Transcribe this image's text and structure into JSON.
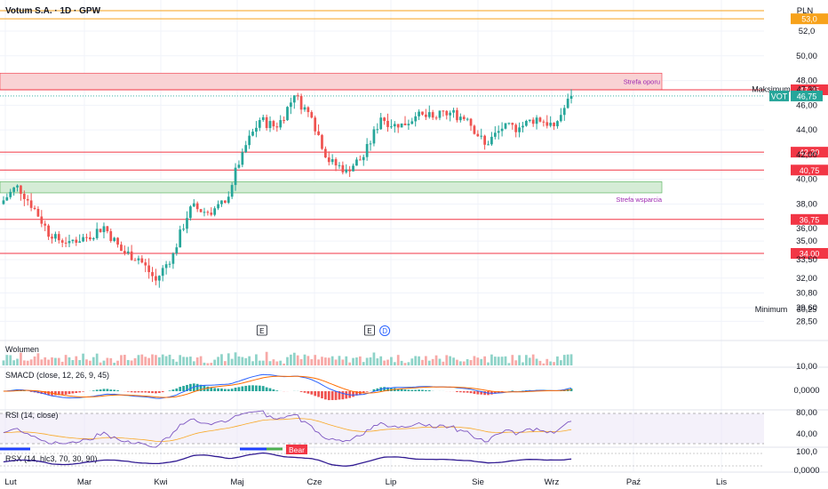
{
  "header": {
    "title": "Votum S.A. · 1D · GPW",
    "currency": "PLN"
  },
  "colors": {
    "up": "#26a69a",
    "down": "#ef5350",
    "level_line": "#f23645",
    "orange_line": "#f7a21b",
    "resistance_fill": "#f9d2d4",
    "support_fill": "#d5ecd6",
    "grid": "#f0f3fa",
    "axis_text": "#131722",
    "label_purple": "#9c27b0",
    "macd_line": "#2962ff",
    "signal_line": "#ff6d00",
    "rsi_line": "#7e57c2",
    "rsx_line": "#311b92"
  },
  "price_axis": {
    "ticks": [
      "52,0",
      "50,00",
      "48,00",
      "46,00",
      "44,00",
      "42,00",
      "40,00",
      "38,00",
      "36,00",
      "35,00",
      "33,50",
      "32,00",
      "30,80",
      "29,60",
      "28,50"
    ],
    "tick_values": [
      52,
      50,
      48,
      46,
      44,
      42,
      40,
      38,
      36,
      35,
      33.5,
      32,
      30.8,
      29.6,
      28.5
    ]
  },
  "levels": [
    {
      "label": "53,0",
      "value": 53.0,
      "kind": "orange"
    },
    {
      "label": "47,25",
      "value": 47.25,
      "kind": "red"
    },
    {
      "label": "42,20",
      "value": 42.2,
      "kind": "red"
    },
    {
      "label": "40,75",
      "value": 40.75,
      "kind": "red"
    },
    {
      "label": "36,75",
      "value": 36.75,
      "kind": "red"
    },
    {
      "label": "34,00",
      "value": 34.0,
      "kind": "red"
    }
  ],
  "zones": {
    "resistance": {
      "label": "Strefa oporu",
      "top": 48.6,
      "bottom": 47.25
    },
    "support": {
      "label": "Strefa wsparcia",
      "top": 39.8,
      "bottom": 38.9
    }
  },
  "markers": {
    "maximum_label": "Maksimum",
    "maximum_value": "47,30",
    "minimum_label": "Minimum",
    "minimum_value": "30,25",
    "last_ticker": "VOT",
    "last_value": "46,75",
    "events": [
      {
        "text": "E",
        "month_pos": 3.32
      },
      {
        "text": "E",
        "month_pos": 4.72
      },
      {
        "text": "D",
        "month_pos": 4.92
      }
    ]
  },
  "time_axis": {
    "labels": [
      "Lut",
      "Mar",
      "Kwi",
      "Maj",
      "Cze",
      "Lip",
      "Sie",
      "Wrz",
      "Paź",
      "Lis"
    ]
  },
  "panes": {
    "volume": {
      "title": "Wolumen",
      "tick": "10,00"
    },
    "macd": {
      "title": "SMACD (close, 12, 26, 9, 45)",
      "tick": "0,0000"
    },
    "rsi": {
      "title": "RSI (14, close)",
      "ticks": [
        "80,00",
        "40,00"
      ]
    },
    "rsx": {
      "title": "RSX (14, hlc3, 70, 30, 90)",
      "ticks": [
        "100,0",
        "0,0000"
      ],
      "badge": "Bear"
    }
  },
  "chart_data": {
    "type": "candlestick",
    "title": "Votum S.A. · 1D · GPW",
    "currency": "PLN",
    "x_labels": [
      "Lut",
      "Mar",
      "Kwi",
      "Maj",
      "Cze",
      "Lip",
      "Sie",
      "Wrz",
      "Paź",
      "Lis"
    ],
    "y_range": [
      28.5,
      55.0
    ],
    "ohlc_weekly": [
      [
        38.0,
        40.2,
        36.8,
        39.5
      ],
      [
        39.5,
        40.0,
        37.2,
        37.6
      ],
      [
        37.6,
        38.0,
        34.8,
        35.2
      ],
      [
        35.2,
        35.8,
        34.5,
        35.0
      ],
      [
        35.0,
        35.6,
        34.6,
        35.3
      ],
      [
        35.3,
        36.5,
        35.0,
        36.2
      ],
      [
        36.2,
        36.3,
        34.0,
        34.2
      ],
      [
        34.2,
        34.8,
        33.0,
        33.6
      ],
      [
        33.6,
        34.2,
        31.2,
        31.8
      ],
      [
        31.8,
        34.5,
        30.25,
        34.0
      ],
      [
        34.0,
        38.2,
        33.8,
        37.8
      ],
      [
        37.8,
        38.6,
        37.0,
        37.3
      ],
      [
        37.3,
        38.3,
        37.0,
        38.1
      ],
      [
        38.1,
        42.5,
        38.0,
        42.2
      ],
      [
        42.2,
        45.0,
        42.0,
        44.8
      ],
      [
        44.8,
        45.5,
        43.8,
        44.2
      ],
      [
        44.2,
        47.3,
        44.0,
        46.8
      ],
      [
        46.8,
        47.0,
        44.5,
        45.0
      ],
      [
        45.0,
        45.2,
        41.0,
        41.4
      ],
      [
        41.4,
        42.5,
        40.4,
        40.8
      ],
      [
        40.8,
        42.0,
        39.6,
        41.8
      ],
      [
        41.8,
        45.5,
        41.5,
        45.0
      ],
      [
        45.0,
        45.8,
        43.6,
        44.2
      ],
      [
        44.2,
        45.5,
        43.8,
        45.1
      ],
      [
        45.1,
        47.2,
        44.8,
        45.0
      ],
      [
        45.0,
        45.6,
        44.4,
        45.4
      ],
      [
        45.4,
        45.8,
        44.6,
        44.9
      ],
      [
        44.9,
        45.2,
        42.4,
        42.8
      ],
      [
        42.8,
        44.8,
        42.2,
        44.1
      ],
      [
        44.1,
        44.6,
        43.4,
        44.2
      ],
      [
        44.2,
        45.2,
        43.8,
        45.0
      ],
      [
        45.0,
        45.3,
        44.0,
        44.3
      ],
      [
        44.3,
        47.3,
        44.1,
        46.75
      ]
    ],
    "levels": [
      53.0,
      47.25,
      42.2,
      40.75,
      36.75,
      34.0
    ],
    "resistance_zone": [
      47.25,
      48.6
    ],
    "support_zone": [
      38.9,
      39.8
    ],
    "maximum": 47.3,
    "minimum": 30.25,
    "last": 46.75
  }
}
